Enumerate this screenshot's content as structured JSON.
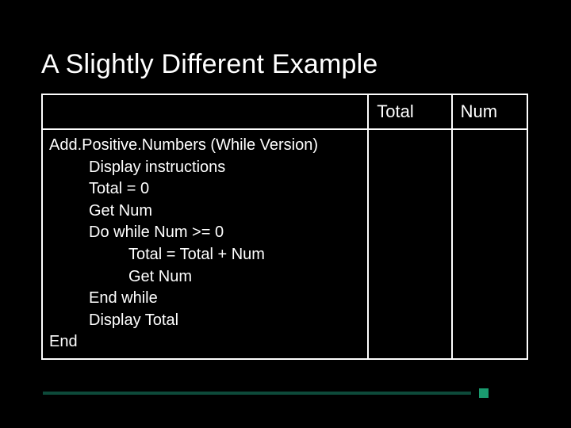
{
  "slide": {
    "title": "A Slightly Different Example",
    "background_color": "#000000",
    "text_color": "#ffffff",
    "accent_bar_color": "#0d4a3a",
    "accent_square_color": "#1a9b6f"
  },
  "table": {
    "border_color": "#ffffff",
    "columns": {
      "main": {
        "header": ""
      },
      "total": {
        "header": "Total"
      },
      "num": {
        "header": "Num"
      }
    },
    "code": {
      "line0": "Add.Positive.Numbers (While Version)",
      "line1": "Display instructions",
      "line2": "Total = 0",
      "line3": "Get Num",
      "line4": "Do while Num >= 0",
      "line5": "Total = Total + Num",
      "line6": "Get Num",
      "line7": "End while",
      "line8": "Display Total",
      "line9": "End"
    }
  }
}
